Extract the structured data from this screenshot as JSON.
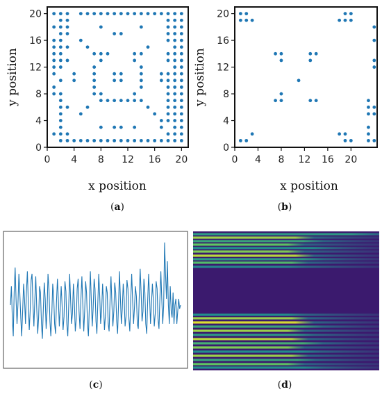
{
  "chart_data": [
    {
      "panel": "a",
      "caption_prefix": "(",
      "caption_letter": "a",
      "caption_suffix": ")",
      "type": "scatter",
      "xlabel": "x position",
      "ylabel": "y position",
      "xlim": [
        0,
        21
      ],
      "ylim": [
        0,
        21
      ],
      "xticks": [
        0,
        4,
        8,
        12,
        16,
        20
      ],
      "yticks": [
        0,
        4,
        8,
        12,
        16,
        20
      ],
      "xtick_labels": [
        "0",
        "4",
        "8",
        "12",
        "16",
        "20"
      ],
      "ytick_labels": [
        "0",
        "4",
        "8",
        "12",
        "16",
        "20"
      ],
      "grid": false,
      "color": "#1f77b4",
      "points": [
        [
          1,
          20
        ],
        [
          2,
          20
        ],
        [
          3,
          20
        ],
        [
          5,
          20
        ],
        [
          6,
          20
        ],
        [
          7,
          20
        ],
        [
          8,
          20
        ],
        [
          9,
          20
        ],
        [
          10,
          20
        ],
        [
          11,
          20
        ],
        [
          12,
          20
        ],
        [
          13,
          20
        ],
        [
          14,
          20
        ],
        [
          15,
          20
        ],
        [
          16,
          20
        ],
        [
          17,
          20
        ],
        [
          18,
          20
        ],
        [
          19,
          20
        ],
        [
          20,
          20
        ],
        [
          2,
          19
        ],
        [
          3,
          19
        ],
        [
          18,
          19
        ],
        [
          19,
          19
        ],
        [
          20,
          19
        ],
        [
          1,
          18
        ],
        [
          2,
          18
        ],
        [
          3,
          18
        ],
        [
          8,
          18
        ],
        [
          14,
          18
        ],
        [
          18,
          18
        ],
        [
          19,
          18
        ],
        [
          20,
          18
        ],
        [
          2,
          17
        ],
        [
          3,
          17
        ],
        [
          10,
          17
        ],
        [
          11,
          17
        ],
        [
          18,
          17
        ],
        [
          19,
          17
        ],
        [
          20,
          17
        ],
        [
          1,
          16
        ],
        [
          2,
          16
        ],
        [
          5,
          16
        ],
        [
          18,
          16
        ],
        [
          19,
          16
        ],
        [
          20,
          16
        ],
        [
          1,
          15
        ],
        [
          2,
          15
        ],
        [
          3,
          15
        ],
        [
          6,
          15
        ],
        [
          15,
          15
        ],
        [
          19,
          15
        ],
        [
          20,
          15
        ],
        [
          1,
          14
        ],
        [
          2,
          14
        ],
        [
          7,
          14
        ],
        [
          8,
          14
        ],
        [
          9,
          14
        ],
        [
          13,
          14
        ],
        [
          14,
          14
        ],
        [
          18,
          14
        ],
        [
          19,
          14
        ],
        [
          20,
          14
        ],
        [
          1,
          13
        ],
        [
          2,
          13
        ],
        [
          3,
          13
        ],
        [
          8,
          13
        ],
        [
          13,
          13
        ],
        [
          18,
          13
        ],
        [
          19,
          13
        ],
        [
          20,
          13
        ],
        [
          1,
          12
        ],
        [
          2,
          12
        ],
        [
          7,
          12
        ],
        [
          14,
          12
        ],
        [
          19,
          12
        ],
        [
          20,
          12
        ],
        [
          1,
          11
        ],
        [
          4,
          11
        ],
        [
          7,
          11
        ],
        [
          10,
          11
        ],
        [
          11,
          11
        ],
        [
          14,
          11
        ],
        [
          17,
          11
        ],
        [
          18,
          11
        ],
        [
          19,
          11
        ],
        [
          20,
          11
        ],
        [
          2,
          10
        ],
        [
          4,
          10
        ],
        [
          7,
          10
        ],
        [
          10,
          10
        ],
        [
          11,
          10
        ],
        [
          14,
          10
        ],
        [
          17,
          10
        ],
        [
          18,
          10
        ],
        [
          19,
          10
        ],
        [
          20,
          10
        ],
        [
          1,
          9
        ],
        [
          7,
          9
        ],
        [
          14,
          9
        ],
        [
          18,
          9
        ],
        [
          19,
          9
        ],
        [
          20,
          9
        ],
        [
          1,
          8
        ],
        [
          2,
          8
        ],
        [
          7,
          8
        ],
        [
          8,
          8
        ],
        [
          13,
          8
        ],
        [
          18,
          8
        ],
        [
          19,
          8
        ],
        [
          20,
          8
        ],
        [
          2,
          7
        ],
        [
          8,
          7
        ],
        [
          9,
          7
        ],
        [
          10,
          7
        ],
        [
          11,
          7
        ],
        [
          12,
          7
        ],
        [
          13,
          7
        ],
        [
          14,
          7
        ],
        [
          18,
          7
        ],
        [
          19,
          7
        ],
        [
          20,
          7
        ],
        [
          2,
          6
        ],
        [
          3,
          6
        ],
        [
          6,
          6
        ],
        [
          15,
          6
        ],
        [
          18,
          6
        ],
        [
          19,
          6
        ],
        [
          20,
          6
        ],
        [
          2,
          5
        ],
        [
          5,
          5
        ],
        [
          16,
          5
        ],
        [
          18,
          5
        ],
        [
          19,
          5
        ],
        [
          20,
          5
        ],
        [
          2,
          4
        ],
        [
          17,
          4
        ],
        [
          18,
          4
        ],
        [
          19,
          4
        ],
        [
          20,
          4
        ],
        [
          2,
          3
        ],
        [
          8,
          3
        ],
        [
          10,
          3
        ],
        [
          11,
          3
        ],
        [
          13,
          3
        ],
        [
          17,
          3
        ],
        [
          19,
          3
        ],
        [
          20,
          3
        ],
        [
          1,
          2
        ],
        [
          2,
          2
        ],
        [
          3,
          2
        ],
        [
          18,
          2
        ],
        [
          19,
          2
        ],
        [
          20,
          2
        ],
        [
          2,
          1
        ],
        [
          3,
          1
        ],
        [
          4,
          1
        ],
        [
          5,
          1
        ],
        [
          6,
          1
        ],
        [
          7,
          1
        ],
        [
          8,
          1
        ],
        [
          9,
          1
        ],
        [
          10,
          1
        ],
        [
          11,
          1
        ],
        [
          12,
          1
        ],
        [
          13,
          1
        ],
        [
          14,
          1
        ],
        [
          15,
          1
        ],
        [
          16,
          1
        ],
        [
          17,
          1
        ],
        [
          18,
          1
        ],
        [
          19,
          1
        ],
        [
          20,
          1
        ]
      ]
    },
    {
      "panel": "b",
      "caption_prefix": "(",
      "caption_letter": "b",
      "caption_suffix": ")",
      "type": "scatter",
      "xlabel": "x position",
      "ylabel": "y position",
      "xlim": [
        0,
        24.5
      ],
      "ylim": [
        0,
        21
      ],
      "xticks": [
        0,
        4,
        8,
        12,
        16,
        20
      ],
      "yticks": [
        0,
        4,
        8,
        12,
        16,
        20
      ],
      "xtick_labels": [
        "0",
        "4",
        "8",
        "12",
        "16",
        "20"
      ],
      "ytick_labels": [
        "0",
        "4",
        "8",
        "12",
        "16",
        "20"
      ],
      "grid": false,
      "color": "#1f77b4",
      "points": [
        [
          1,
          20
        ],
        [
          2,
          20
        ],
        [
          1,
          19
        ],
        [
          2,
          19
        ],
        [
          3,
          19
        ],
        [
          19,
          20
        ],
        [
          20,
          20
        ],
        [
          18,
          19
        ],
        [
          19,
          19
        ],
        [
          20,
          19
        ],
        [
          24,
          18
        ],
        [
          24,
          16
        ],
        [
          24,
          13
        ],
        [
          24,
          12
        ],
        [
          7,
          14
        ],
        [
          8,
          14
        ],
        [
          8,
          13
        ],
        [
          13,
          14
        ],
        [
          14,
          14
        ],
        [
          13,
          13
        ],
        [
          11,
          10
        ],
        [
          8,
          8
        ],
        [
          7,
          7
        ],
        [
          8,
          7
        ],
        [
          13,
          7
        ],
        [
          14,
          7
        ],
        [
          23,
          7
        ],
        [
          23,
          6
        ],
        [
          24,
          6
        ],
        [
          23,
          5
        ],
        [
          24,
          5
        ],
        [
          23,
          3
        ],
        [
          23,
          2
        ],
        [
          23,
          1
        ],
        [
          24,
          1
        ],
        [
          1,
          1
        ],
        [
          2,
          1
        ],
        [
          3,
          2
        ],
        [
          18,
          2
        ],
        [
          19,
          2
        ],
        [
          19,
          1
        ],
        [
          20,
          1
        ]
      ]
    },
    {
      "panel": "c",
      "caption_prefix": "(",
      "caption_letter": "c",
      "caption_suffix": ")",
      "type": "line",
      "xlabel": "",
      "ylabel": "",
      "grid": false,
      "color": "#1f77b4",
      "values": [
        0.45,
        0.6,
        0.35,
        0.2,
        0.55,
        0.75,
        0.5,
        0.3,
        0.45,
        0.7,
        0.55,
        0.35,
        0.2,
        0.4,
        0.62,
        0.5,
        0.3,
        0.55,
        0.72,
        0.48,
        0.25,
        0.4,
        0.65,
        0.7,
        0.45,
        0.28,
        0.5,
        0.68,
        0.42,
        0.22,
        0.35,
        0.6,
        0.55,
        0.3,
        0.18,
        0.42,
        0.63,
        0.5,
        0.26,
        0.4,
        0.7,
        0.58,
        0.32,
        0.2,
        0.38,
        0.62,
        0.52,
        0.3,
        0.22,
        0.47,
        0.66,
        0.5,
        0.28,
        0.42,
        0.6,
        0.45,
        0.25,
        0.36,
        0.64,
        0.56,
        0.3,
        0.2,
        0.44,
        0.7,
        0.5,
        0.3,
        0.38,
        0.62,
        0.48,
        0.24,
        0.34,
        0.58,
        0.66,
        0.4,
        0.26,
        0.5,
        0.68,
        0.46,
        0.24,
        0.4,
        0.64,
        0.55,
        0.3,
        0.2,
        0.45,
        0.72,
        0.5,
        0.28,
        0.42,
        0.66,
        0.58,
        0.32,
        0.22,
        0.48,
        0.7,
        0.52,
        0.3,
        0.4,
        0.62,
        0.47,
        0.25,
        0.36,
        0.6,
        0.55,
        0.3,
        0.24,
        0.5,
        0.68,
        0.45,
        0.28,
        0.4,
        0.63,
        0.55,
        0.32,
        0.22,
        0.46,
        0.72,
        0.5,
        0.3,
        0.42,
        0.62,
        0.5,
        0.28,
        0.36,
        0.65,
        0.58,
        0.34,
        0.24,
        0.5,
        0.7,
        0.48,
        0.3,
        0.44,
        0.6,
        0.52,
        0.3,
        0.26,
        0.5,
        0.74,
        0.56,
        0.32,
        0.4,
        0.66,
        0.55,
        0.3,
        0.22,
        0.48,
        0.7,
        0.52,
        0.3,
        0.45,
        0.62,
        0.5,
        0.28,
        0.38,
        0.64,
        0.58,
        0.34,
        0.26,
        0.5,
        0.72,
        0.5,
        0.3,
        0.44,
        0.95,
        0.7,
        0.5,
        0.8,
        0.45,
        0.3,
        0.6,
        0.4,
        0.35,
        0.55,
        0.3,
        0.45,
        0.5,
        0.3,
        0.4,
        0.5,
        0.42,
        0.45
      ]
    },
    {
      "panel": "d",
      "caption_prefix": "(",
      "caption_letter": "d",
      "caption_suffix": ")",
      "type": "heatmap",
      "colormap": "viridis",
      "background": "#3b1a6e",
      "bands": [
        {
          "y": 0.02,
          "intensity": 0.55,
          "fade_end": 1.0
        },
        {
          "y": 0.045,
          "intensity": 0.85,
          "fade_end": 0.65
        },
        {
          "y": 0.07,
          "intensity": 0.6,
          "fade_end": 0.7
        },
        {
          "y": 0.095,
          "intensity": 0.75,
          "fade_end": 0.6
        },
        {
          "y": 0.12,
          "intensity": 0.5,
          "fade_end": 0.75
        },
        {
          "y": 0.145,
          "intensity": 0.8,
          "fade_end": 0.6
        },
        {
          "y": 0.175,
          "intensity": 0.9,
          "fade_end": 0.65
        },
        {
          "y": 0.2,
          "intensity": 0.55,
          "fade_end": 0.7
        },
        {
          "y": 0.225,
          "intensity": 0.7,
          "fade_end": 0.62
        },
        {
          "y": 0.255,
          "intensity": 0.45,
          "fade_end": 0.6
        },
        {
          "y": 0.6,
          "intensity": 0.5,
          "fade_end": 0.6
        },
        {
          "y": 0.625,
          "intensity": 0.85,
          "fade_end": 0.62
        },
        {
          "y": 0.655,
          "intensity": 0.95,
          "fade_end": 0.65
        },
        {
          "y": 0.685,
          "intensity": 0.6,
          "fade_end": 0.7
        },
        {
          "y": 0.715,
          "intensity": 0.85,
          "fade_end": 0.6
        },
        {
          "y": 0.745,
          "intensity": 0.55,
          "fade_end": 0.65
        },
        {
          "y": 0.775,
          "intensity": 0.9,
          "fade_end": 0.62
        },
        {
          "y": 0.805,
          "intensity": 0.65,
          "fade_end": 0.7
        },
        {
          "y": 0.835,
          "intensity": 0.8,
          "fade_end": 0.6
        },
        {
          "y": 0.865,
          "intensity": 0.5,
          "fade_end": 0.68
        },
        {
          "y": 0.895,
          "intensity": 0.85,
          "fade_end": 0.62
        },
        {
          "y": 0.925,
          "intensity": 0.6,
          "fade_end": 0.66
        },
        {
          "y": 0.955,
          "intensity": 0.75,
          "fade_end": 0.6
        },
        {
          "y": 0.98,
          "intensity": 0.5,
          "fade_end": 0.7
        }
      ]
    }
  ]
}
